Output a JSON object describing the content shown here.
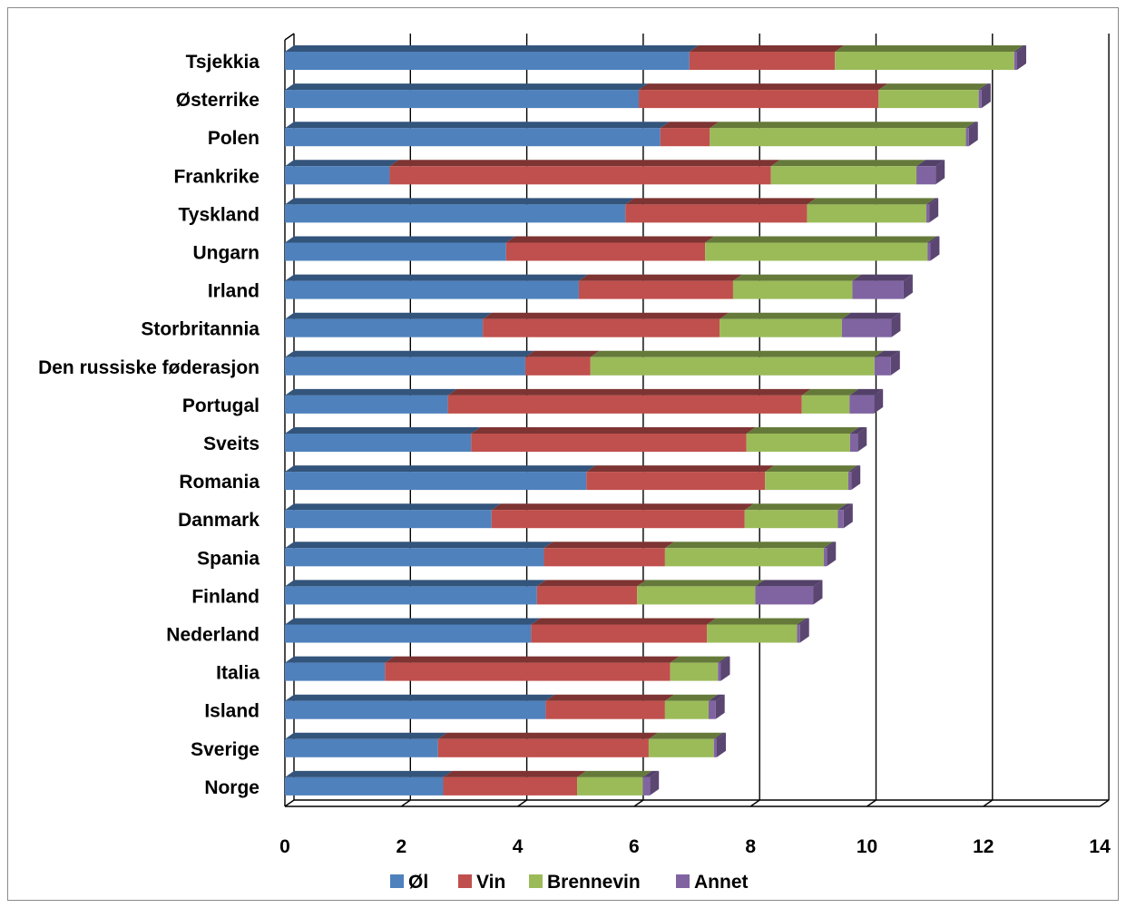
{
  "chart_data": {
    "type": "bar",
    "orientation": "horizontal",
    "stacked": true,
    "three_d": true,
    "title": "",
    "xlabel": "",
    "ylabel": "",
    "xlim": [
      0,
      14
    ],
    "x_ticks": [
      0,
      2,
      4,
      6,
      8,
      10,
      12,
      14
    ],
    "grid": true,
    "legend_position": "bottom",
    "categories": [
      "Tsjekkia",
      "Østerrike",
      "Polen",
      "Frankrike",
      "Tyskland",
      "Ungarn",
      "Irland",
      "Storbritannia",
      "Den russiske føderasjon",
      "Portugal",
      "Sveits",
      "Romania",
      "Danmark",
      "Spania",
      "Finland",
      "Nederland",
      "Italia",
      "Island",
      "Sverige",
      "Norge"
    ],
    "series": [
      {
        "name": "Øl",
        "color": "#4f81bd",
        "values": [
          6.95,
          6.08,
          6.45,
          1.8,
          5.85,
          3.8,
          5.05,
          3.4,
          4.13,
          2.8,
          3.2,
          5.18,
          3.55,
          4.45,
          4.33,
          4.23,
          1.72,
          4.48,
          2.63,
          2.72
        ]
      },
      {
        "name": "Vin",
        "color": "#c0504d",
        "values": [
          2.5,
          4.12,
          0.85,
          6.55,
          3.12,
          3.42,
          2.65,
          4.07,
          1.12,
          6.08,
          4.73,
          3.07,
          4.35,
          2.08,
          1.72,
          3.02,
          4.9,
          2.05,
          3.62,
          2.3
        ]
      },
      {
        "name": "Brennevin",
        "color": "#9bbb59",
        "values": [
          3.08,
          1.72,
          4.4,
          2.5,
          2.05,
          3.82,
          2.05,
          2.1,
          4.88,
          0.82,
          1.78,
          1.43,
          1.6,
          2.73,
          2.03,
          1.55,
          0.82,
          0.75,
          1.12,
          1.13
        ]
      },
      {
        "name": "Annet",
        "color": "#8064a2",
        "values": [
          0.05,
          0.05,
          0.05,
          0.33,
          0.05,
          0.05,
          0.88,
          0.85,
          0.28,
          0.42,
          0.13,
          0.05,
          0.1,
          0.05,
          1.0,
          0.05,
          0.05,
          0.12,
          0.05,
          0.12
        ]
      }
    ]
  }
}
